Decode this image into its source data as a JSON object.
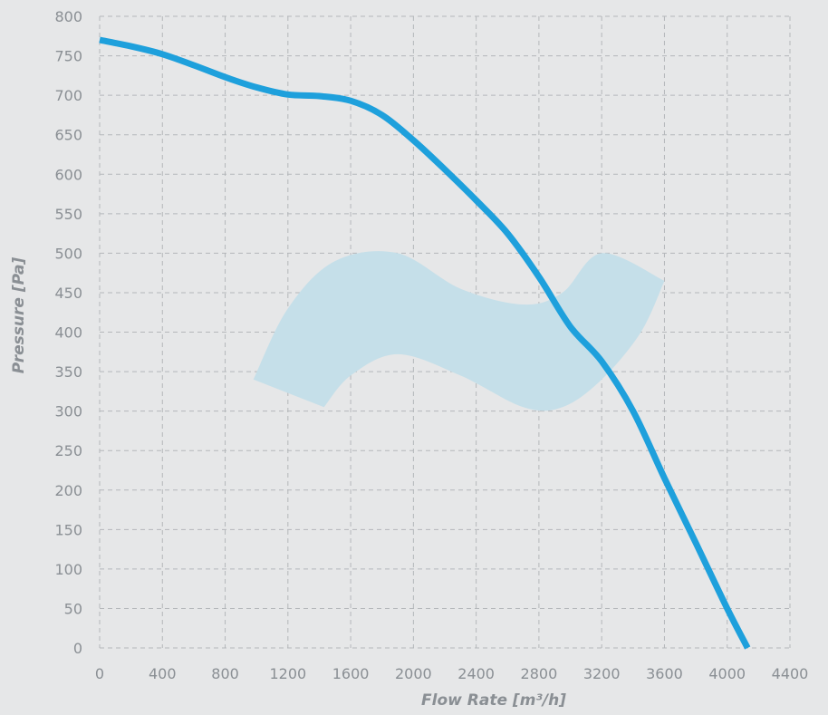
{
  "chart_data": {
    "type": "line",
    "xlabel": "Flow Rate [m³/h]",
    "ylabel": "Pressure [Pa]",
    "xlim": [
      0,
      4400
    ],
    "ylim": [
      0,
      800
    ],
    "x_ticks": [
      "0",
      "400",
      "800",
      "1200",
      "1600",
      "2000",
      "2400",
      "2800",
      "3200",
      "3600",
      "4000",
      "4400"
    ],
    "y_ticks": [
      "0",
      "50",
      "100",
      "150",
      "200",
      "250",
      "300",
      "350",
      "400",
      "450",
      "500",
      "550",
      "600",
      "650",
      "700",
      "750",
      "800"
    ],
    "grid": true,
    "series": [
      {
        "color": "#1ea0dc",
        "points": [
          [
            0,
            770
          ],
          [
            200,
            762
          ],
          [
            400,
            752
          ],
          [
            600,
            738
          ],
          [
            800,
            723
          ],
          [
            1000,
            710
          ],
          [
            1200,
            701
          ],
          [
            1400,
            699
          ],
          [
            1600,
            693
          ],
          [
            1800,
            675
          ],
          [
            2000,
            643
          ],
          [
            2200,
            606
          ],
          [
            2400,
            567
          ],
          [
            2600,
            525
          ],
          [
            2800,
            470
          ],
          [
            3000,
            407
          ],
          [
            3200,
            363
          ],
          [
            3400,
            300
          ],
          [
            3600,
            215
          ],
          [
            3800,
            133
          ],
          [
            4000,
            50
          ],
          [
            4130,
            0
          ]
        ]
      }
    ],
    "operating_region": {
      "color": "#c5dfe9",
      "upper": [
        [
          980,
          340
        ],
        [
          1200,
          430
        ],
        [
          1500,
          490
        ],
        [
          1900,
          500
        ],
        [
          2300,
          455
        ],
        [
          2700,
          435
        ],
        [
          2950,
          450
        ],
        [
          3200,
          500
        ],
        [
          3600,
          465
        ]
      ],
      "lower": [
        [
          3600,
          465
        ],
        [
          3450,
          400
        ],
        [
          3200,
          340
        ],
        [
          2950,
          305
        ],
        [
          2700,
          305
        ],
        [
          2300,
          345
        ],
        [
          1900,
          372
        ],
        [
          1600,
          345
        ],
        [
          1430,
          305
        ]
      ]
    }
  }
}
